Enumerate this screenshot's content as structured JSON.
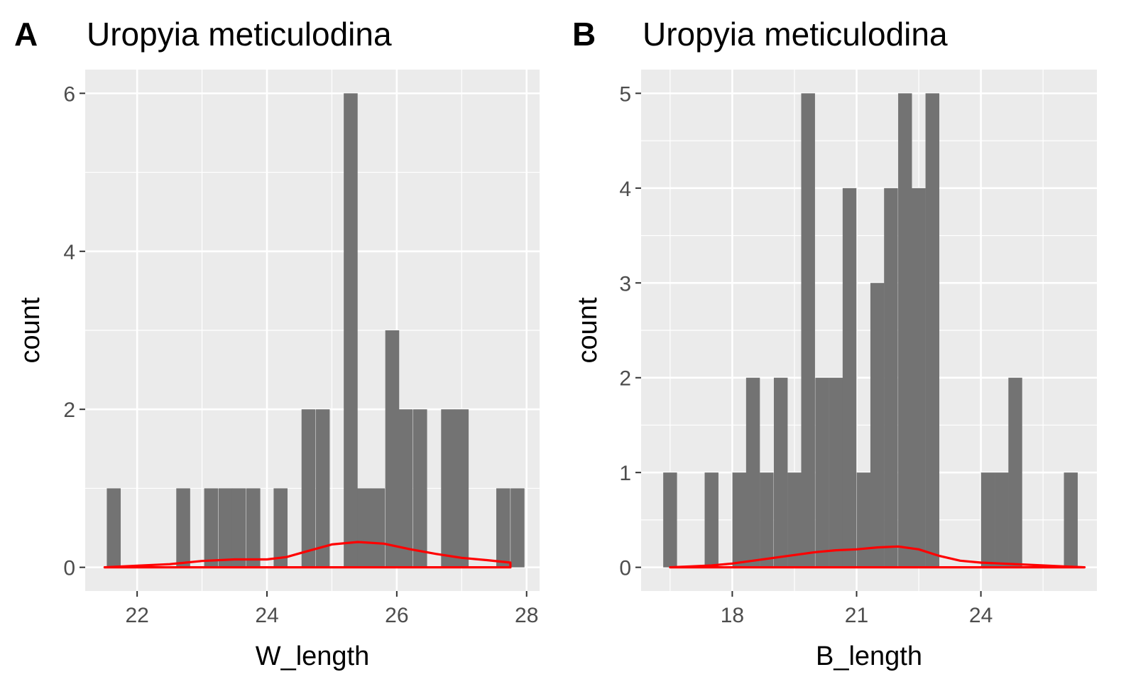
{
  "chart_data": [
    {
      "type": "bar",
      "tag": "A",
      "title": "Uropyia meticulodina",
      "xlabel": "W_length",
      "ylabel": "count",
      "xlim": [
        21.2,
        28.2
      ],
      "ylim": [
        -0.3,
        6.3
      ],
      "xticks": [
        22,
        24,
        26,
        28
      ],
      "xtick_labels": [
        "22",
        "24",
        "26",
        "28"
      ],
      "yticks": [
        0,
        2,
        4,
        6
      ],
      "ytick_labels": [
        "0",
        "2",
        "4",
        "6"
      ],
      "grid": true,
      "bin_width": 0.214,
      "bins": [
        {
          "x": 21.64,
          "count": 1
        },
        {
          "x": 22.71,
          "count": 1
        },
        {
          "x": 23.14,
          "count": 1
        },
        {
          "x": 23.36,
          "count": 1
        },
        {
          "x": 23.57,
          "count": 1
        },
        {
          "x": 23.79,
          "count": 1
        },
        {
          "x": 24.21,
          "count": 1
        },
        {
          "x": 24.64,
          "count": 2
        },
        {
          "x": 24.86,
          "count": 2
        },
        {
          "x": 25.29,
          "count": 6
        },
        {
          "x": 25.5,
          "count": 1
        },
        {
          "x": 25.71,
          "count": 1
        },
        {
          "x": 25.93,
          "count": 3
        },
        {
          "x": 26.14,
          "count": 2
        },
        {
          "x": 26.36,
          "count": 2
        },
        {
          "x": 26.79,
          "count": 2
        },
        {
          "x": 27.0,
          "count": 2
        },
        {
          "x": 27.64,
          "count": 1
        },
        {
          "x": 27.86,
          "count": 1
        }
      ],
      "density": {
        "x": [
          21.5,
          22.0,
          22.5,
          23.0,
          23.5,
          24.0,
          24.3,
          24.6,
          25.0,
          25.4,
          25.8,
          26.2,
          26.6,
          27.0,
          27.4,
          27.75
        ],
        "y": [
          0.0,
          0.02,
          0.04,
          0.08,
          0.1,
          0.1,
          0.13,
          0.2,
          0.29,
          0.32,
          0.3,
          0.23,
          0.17,
          0.12,
          0.09,
          0.06
        ]
      },
      "colors": {
        "bar": "#737373",
        "density": "#ff0000",
        "panel": "#ebebeb",
        "grid": "#ffffff"
      }
    },
    {
      "type": "bar",
      "tag": "B",
      "title": "Uropyia meticulodina",
      "xlabel": "B_length",
      "ylabel": "count",
      "xlim": [
        15.8,
        26.8
      ],
      "ylim": [
        -0.25,
        5.25
      ],
      "xticks": [
        18,
        21,
        24
      ],
      "xtick_labels": [
        "18",
        "21",
        "24"
      ],
      "yticks": [
        0,
        1,
        2,
        3,
        4,
        5
      ],
      "ytick_labels": [
        "0",
        "1",
        "2",
        "3",
        "4",
        "5"
      ],
      "grid": true,
      "bin_width": 0.333,
      "bins": [
        {
          "x": 16.5,
          "count": 1
        },
        {
          "x": 17.5,
          "count": 1
        },
        {
          "x": 18.17,
          "count": 1
        },
        {
          "x": 18.5,
          "count": 2
        },
        {
          "x": 18.83,
          "count": 1
        },
        {
          "x": 19.17,
          "count": 2
        },
        {
          "x": 19.5,
          "count": 1
        },
        {
          "x": 19.83,
          "count": 5
        },
        {
          "x": 20.17,
          "count": 2
        },
        {
          "x": 20.5,
          "count": 2
        },
        {
          "x": 20.83,
          "count": 4
        },
        {
          "x": 21.17,
          "count": 1
        },
        {
          "x": 21.5,
          "count": 3
        },
        {
          "x": 21.83,
          "count": 4
        },
        {
          "x": 22.17,
          "count": 5
        },
        {
          "x": 22.5,
          "count": 4
        },
        {
          "x": 22.83,
          "count": 5
        },
        {
          "x": 24.17,
          "count": 1
        },
        {
          "x": 24.5,
          "count": 1
        },
        {
          "x": 24.83,
          "count": 2
        },
        {
          "x": 26.17,
          "count": 1
        }
      ],
      "density": {
        "x": [
          16.5,
          17.0,
          17.5,
          18.0,
          18.5,
          19.0,
          19.5,
          20.0,
          20.5,
          21.0,
          21.5,
          22.0,
          22.5,
          23.0,
          23.5,
          24.0,
          24.5,
          25.0,
          25.5,
          26.0,
          26.5
        ],
        "y": [
          0.0,
          0.01,
          0.02,
          0.04,
          0.07,
          0.1,
          0.13,
          0.16,
          0.18,
          0.19,
          0.21,
          0.22,
          0.19,
          0.12,
          0.07,
          0.05,
          0.04,
          0.03,
          0.02,
          0.01,
          0.0
        ]
      },
      "colors": {
        "bar": "#737373",
        "density": "#ff0000",
        "panel": "#ebebeb",
        "grid": "#ffffff"
      }
    }
  ]
}
